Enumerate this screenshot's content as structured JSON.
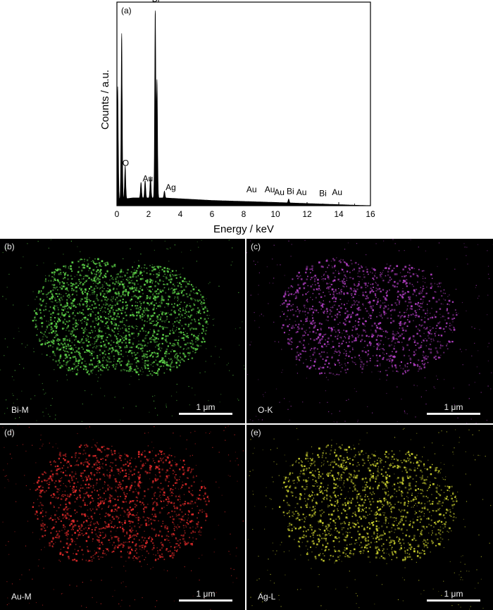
{
  "chart_data": [
    {
      "type": "line",
      "panel_label": "(a)",
      "xlabel": "Energy / keV",
      "ylabel": "Counts / a.u.",
      "xlim": [
        0,
        16
      ],
      "xticks": [
        0,
        2,
        4,
        6,
        8,
        10,
        12,
        14,
        16
      ],
      "yticks_shown": false,
      "grid": false,
      "fill": "#000000",
      "peaks": [
        {
          "x": 0.05,
          "y": 0.58
        },
        {
          "x": 0.3,
          "y": 0.85
        },
        {
          "x": 0.52,
          "y": 0.17
        },
        {
          "x": 1.52,
          "y": 0.08
        },
        {
          "x": 1.78,
          "y": 0.09
        },
        {
          "x": 2.12,
          "y": 0.11
        },
        {
          "x": 2.42,
          "y": 0.97
        },
        {
          "x": 2.53,
          "y": 0.6
        },
        {
          "x": 3.0,
          "y": 0.035
        },
        {
          "x": 10.84,
          "y": 0.02
        }
      ],
      "background": [
        {
          "x": 0.0,
          "y": 0.03
        },
        {
          "x": 1.0,
          "y": 0.04
        },
        {
          "x": 3.0,
          "y": 0.04
        },
        {
          "x": 6.0,
          "y": 0.027
        },
        {
          "x": 10.0,
          "y": 0.017
        },
        {
          "x": 16.0,
          "y": 0.0
        }
      ],
      "annotations": [
        {
          "text": "Bi",
          "x": 2.45,
          "y": 1.03
        },
        {
          "text": "O",
          "x": 0.55,
          "y": 0.19
        },
        {
          "text": "Au",
          "x": 1.95,
          "y": 0.11
        },
        {
          "text": "Ag",
          "x": 3.4,
          "y": 0.065
        },
        {
          "text": "Au",
          "x": 8.5,
          "y": 0.055
        },
        {
          "text": "Au",
          "x": 9.65,
          "y": 0.055
        },
        {
          "text": "Au",
          "x": 10.25,
          "y": 0.04
        },
        {
          "text": "Bi",
          "x": 10.95,
          "y": 0.045
        },
        {
          "text": "Au",
          "x": 11.65,
          "y": 0.04
        },
        {
          "text": "Bi",
          "x": 13.0,
          "y": 0.035
        },
        {
          "text": "Au",
          "x": 13.9,
          "y": 0.04
        }
      ]
    }
  ],
  "maps": [
    {
      "panel": "(b)",
      "element": "Bi-M",
      "color": "#5fd84a",
      "scale": "1 μm",
      "density": 0.95
    },
    {
      "panel": "(c)",
      "element": "O-K",
      "color": "#b23fc4",
      "scale": "1 μm",
      "density": 0.45
    },
    {
      "panel": "(d)",
      "element": "Au-M",
      "color": "#e02a2a",
      "scale": "1 μm",
      "density": 0.5
    },
    {
      "panel": "(e)",
      "element": "Ag-L",
      "color": "#c9cf2e",
      "scale": "1 μm",
      "density": 0.5
    }
  ]
}
